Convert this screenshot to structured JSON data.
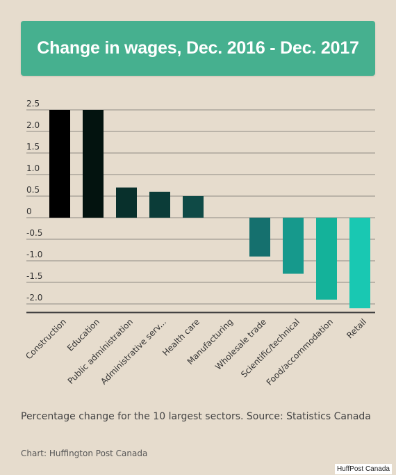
{
  "header": {
    "title": "Change in wages, Dec. 2016 - Dec. 2017"
  },
  "chart_data": {
    "type": "bar",
    "categories": [
      "Construction",
      "Education",
      "Public administration",
      "Administrative serv...",
      "Health care",
      "Manufacturing",
      "Wholesale trade",
      "Scientific/technical",
      "Food/accommodation",
      "Retail"
    ],
    "values": [
      2.5,
      2.5,
      0.7,
      0.6,
      0.5,
      0.0,
      -0.9,
      -1.3,
      -1.9,
      -2.1
    ],
    "colors": [
      "#000000",
      "#03130f",
      "#08302c",
      "#0b3c38",
      "#0f4a46",
      "#135a56",
      "#15706e",
      "#16998c",
      "#14b29a",
      "#19c8b2"
    ],
    "yticks": [
      2.5,
      2.0,
      1.5,
      1.0,
      0.5,
      0,
      -0.5,
      -1.0,
      -1.5,
      -2.0
    ],
    "ytick_labels": [
      "2.5",
      "2.0",
      "1.5",
      "1.0",
      "0.5",
      "0",
      "-0.5",
      "-1.0",
      "-1.5",
      "-2.0"
    ],
    "ylim": [
      -2.2,
      2.5
    ],
    "grid": true,
    "title": "Change in wages, Dec. 2016 - Dec. 2017",
    "xlabel": "",
    "ylabel": ""
  },
  "footer": {
    "caption": "Percentage change for the 10 largest sectors. Source: Statistics Canada",
    "credit": "Chart: Huffington Post Canada",
    "watermark": "HuffPost Canada"
  }
}
